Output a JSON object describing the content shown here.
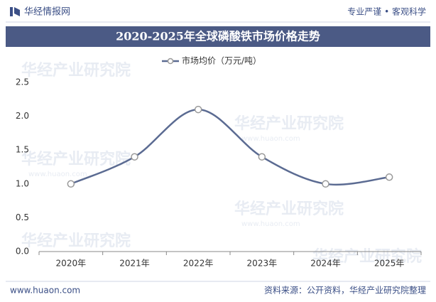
{
  "header": {
    "brand": "华经情报网",
    "tagline": "专业严谨 • 客观科学"
  },
  "watermark": "华经产业研究院",
  "chart_data": {
    "type": "line",
    "title": "2020-2025年全球磷酸铁市场价格走势",
    "categories": [
      "2020年",
      "2021年",
      "2022年",
      "2023年",
      "2024年",
      "2025年"
    ],
    "series": [
      {
        "name": "市场均价（万元/吨）",
        "color": "#5b6b92",
        "values": [
          1.0,
          1.4,
          2.1,
          1.4,
          1.0,
          1.1
        ]
      }
    ],
    "ylim": [
      0,
      2.5
    ],
    "yticks": [
      {
        "value": 0,
        "label": "0.0"
      },
      0.5,
      {
        "value": 1,
        "label": "1.0"
      },
      1.5,
      {
        "value": 2,
        "label": "2.0"
      },
      2.5
    ],
    "grid": false,
    "legend": "top",
    "smooth": true
  },
  "footer": {
    "website": "www.huaon.com",
    "source": "资料来源：公开资料，华经产业研究院整理"
  }
}
